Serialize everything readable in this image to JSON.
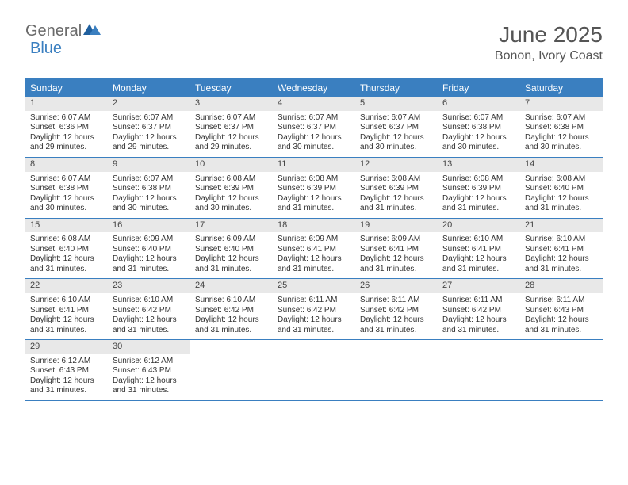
{
  "logo": {
    "part1": "General",
    "part2": "Blue"
  },
  "title": "June 2025",
  "location": "Bonon, Ivory Coast",
  "colors": {
    "accent": "#3a7fc0",
    "header_text": "#ffffff",
    "daynum_bg": "#e8e8e8",
    "body_text": "#333333",
    "title_text": "#555555",
    "logo_gray": "#6a6a6a"
  },
  "day_headers": [
    "Sunday",
    "Monday",
    "Tuesday",
    "Wednesday",
    "Thursday",
    "Friday",
    "Saturday"
  ],
  "weeks": [
    [
      {
        "n": "1",
        "sr": "Sunrise: 6:07 AM",
        "ss": "Sunset: 6:36 PM",
        "dl": "Daylight: 12 hours and 29 minutes."
      },
      {
        "n": "2",
        "sr": "Sunrise: 6:07 AM",
        "ss": "Sunset: 6:37 PM",
        "dl": "Daylight: 12 hours and 29 minutes."
      },
      {
        "n": "3",
        "sr": "Sunrise: 6:07 AM",
        "ss": "Sunset: 6:37 PM",
        "dl": "Daylight: 12 hours and 29 minutes."
      },
      {
        "n": "4",
        "sr": "Sunrise: 6:07 AM",
        "ss": "Sunset: 6:37 PM",
        "dl": "Daylight: 12 hours and 30 minutes."
      },
      {
        "n": "5",
        "sr": "Sunrise: 6:07 AM",
        "ss": "Sunset: 6:37 PM",
        "dl": "Daylight: 12 hours and 30 minutes."
      },
      {
        "n": "6",
        "sr": "Sunrise: 6:07 AM",
        "ss": "Sunset: 6:38 PM",
        "dl": "Daylight: 12 hours and 30 minutes."
      },
      {
        "n": "7",
        "sr": "Sunrise: 6:07 AM",
        "ss": "Sunset: 6:38 PM",
        "dl": "Daylight: 12 hours and 30 minutes."
      }
    ],
    [
      {
        "n": "8",
        "sr": "Sunrise: 6:07 AM",
        "ss": "Sunset: 6:38 PM",
        "dl": "Daylight: 12 hours and 30 minutes."
      },
      {
        "n": "9",
        "sr": "Sunrise: 6:07 AM",
        "ss": "Sunset: 6:38 PM",
        "dl": "Daylight: 12 hours and 30 minutes."
      },
      {
        "n": "10",
        "sr": "Sunrise: 6:08 AM",
        "ss": "Sunset: 6:39 PM",
        "dl": "Daylight: 12 hours and 30 minutes."
      },
      {
        "n": "11",
        "sr": "Sunrise: 6:08 AM",
        "ss": "Sunset: 6:39 PM",
        "dl": "Daylight: 12 hours and 31 minutes."
      },
      {
        "n": "12",
        "sr": "Sunrise: 6:08 AM",
        "ss": "Sunset: 6:39 PM",
        "dl": "Daylight: 12 hours and 31 minutes."
      },
      {
        "n": "13",
        "sr": "Sunrise: 6:08 AM",
        "ss": "Sunset: 6:39 PM",
        "dl": "Daylight: 12 hours and 31 minutes."
      },
      {
        "n": "14",
        "sr": "Sunrise: 6:08 AM",
        "ss": "Sunset: 6:40 PM",
        "dl": "Daylight: 12 hours and 31 minutes."
      }
    ],
    [
      {
        "n": "15",
        "sr": "Sunrise: 6:08 AM",
        "ss": "Sunset: 6:40 PM",
        "dl": "Daylight: 12 hours and 31 minutes."
      },
      {
        "n": "16",
        "sr": "Sunrise: 6:09 AM",
        "ss": "Sunset: 6:40 PM",
        "dl": "Daylight: 12 hours and 31 minutes."
      },
      {
        "n": "17",
        "sr": "Sunrise: 6:09 AM",
        "ss": "Sunset: 6:40 PM",
        "dl": "Daylight: 12 hours and 31 minutes."
      },
      {
        "n": "18",
        "sr": "Sunrise: 6:09 AM",
        "ss": "Sunset: 6:41 PM",
        "dl": "Daylight: 12 hours and 31 minutes."
      },
      {
        "n": "19",
        "sr": "Sunrise: 6:09 AM",
        "ss": "Sunset: 6:41 PM",
        "dl": "Daylight: 12 hours and 31 minutes."
      },
      {
        "n": "20",
        "sr": "Sunrise: 6:10 AM",
        "ss": "Sunset: 6:41 PM",
        "dl": "Daylight: 12 hours and 31 minutes."
      },
      {
        "n": "21",
        "sr": "Sunrise: 6:10 AM",
        "ss": "Sunset: 6:41 PM",
        "dl": "Daylight: 12 hours and 31 minutes."
      }
    ],
    [
      {
        "n": "22",
        "sr": "Sunrise: 6:10 AM",
        "ss": "Sunset: 6:41 PM",
        "dl": "Daylight: 12 hours and 31 minutes."
      },
      {
        "n": "23",
        "sr": "Sunrise: 6:10 AM",
        "ss": "Sunset: 6:42 PM",
        "dl": "Daylight: 12 hours and 31 minutes."
      },
      {
        "n": "24",
        "sr": "Sunrise: 6:10 AM",
        "ss": "Sunset: 6:42 PM",
        "dl": "Daylight: 12 hours and 31 minutes."
      },
      {
        "n": "25",
        "sr": "Sunrise: 6:11 AM",
        "ss": "Sunset: 6:42 PM",
        "dl": "Daylight: 12 hours and 31 minutes."
      },
      {
        "n": "26",
        "sr": "Sunrise: 6:11 AM",
        "ss": "Sunset: 6:42 PM",
        "dl": "Daylight: 12 hours and 31 minutes."
      },
      {
        "n": "27",
        "sr": "Sunrise: 6:11 AM",
        "ss": "Sunset: 6:42 PM",
        "dl": "Daylight: 12 hours and 31 minutes."
      },
      {
        "n": "28",
        "sr": "Sunrise: 6:11 AM",
        "ss": "Sunset: 6:43 PM",
        "dl": "Daylight: 12 hours and 31 minutes."
      }
    ],
    [
      {
        "n": "29",
        "sr": "Sunrise: 6:12 AM",
        "ss": "Sunset: 6:43 PM",
        "dl": "Daylight: 12 hours and 31 minutes."
      },
      {
        "n": "30",
        "sr": "Sunrise: 6:12 AM",
        "ss": "Sunset: 6:43 PM",
        "dl": "Daylight: 12 hours and 31 minutes."
      },
      null,
      null,
      null,
      null,
      null
    ]
  ]
}
